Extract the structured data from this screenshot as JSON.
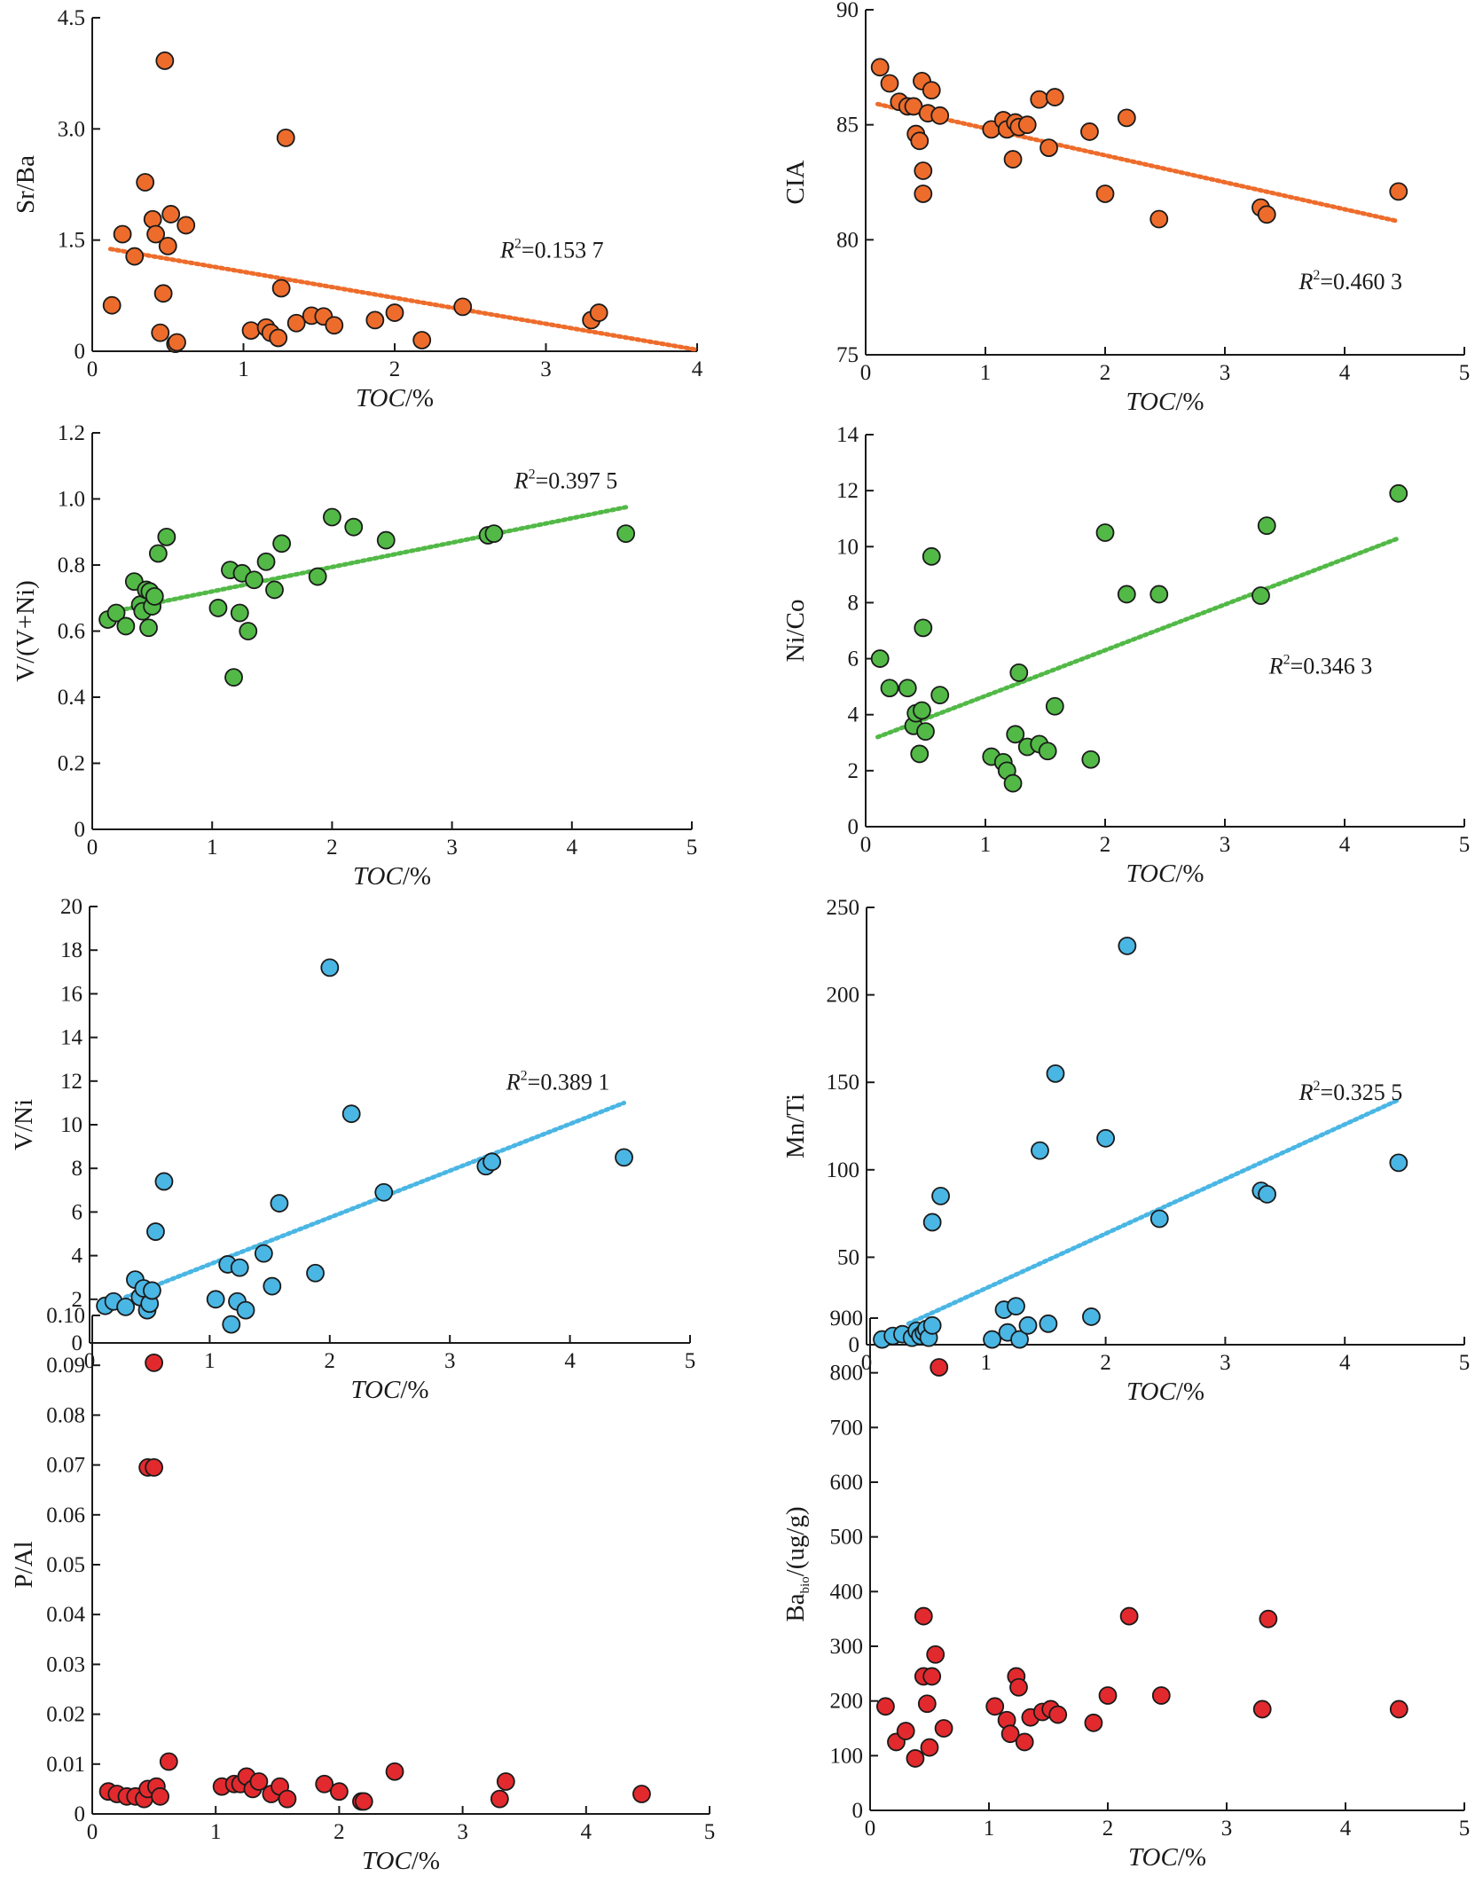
{
  "chart_data": [
    {
      "type": "scatter",
      "color": "#ee6c2b",
      "xlabel": "TOC/%",
      "ylabel": "Sr/Ba",
      "xlim": [
        0,
        4
      ],
      "ylim": [
        0,
        4.5
      ],
      "xticks": [
        "0",
        "1",
        "2",
        "3",
        "4"
      ],
      "yticks": [
        "0",
        "1.5",
        "3.0",
        "4.5"
      ],
      "r2_label": "R²=0.153 7",
      "trendline": {
        "x0": 0.12,
        "y0": 1.38,
        "x1": 4.0,
        "y1": 0.02
      },
      "points": [
        [
          0.13,
          0.62
        ],
        [
          0.2,
          1.58
        ],
        [
          0.28,
          1.28
        ],
        [
          0.35,
          2.28
        ],
        [
          0.4,
          1.78
        ],
        [
          0.42,
          1.58
        ],
        [
          0.45,
          0.25
        ],
        [
          0.47,
          0.78
        ],
        [
          0.48,
          3.92
        ],
        [
          0.5,
          1.42
        ],
        [
          0.52,
          1.85
        ],
        [
          0.55,
          0.1
        ],
        [
          0.56,
          0.12
        ],
        [
          0.62,
          1.7
        ],
        [
          1.05,
          0.28
        ],
        [
          1.15,
          0.32
        ],
        [
          1.18,
          0.25
        ],
        [
          1.23,
          0.18
        ],
        [
          1.25,
          0.85
        ],
        [
          1.28,
          2.88
        ],
        [
          1.35,
          0.38
        ],
        [
          1.45,
          0.48
        ],
        [
          1.53,
          0.47
        ],
        [
          1.6,
          0.35
        ],
        [
          1.87,
          0.42
        ],
        [
          2.0,
          0.52
        ],
        [
          2.18,
          0.15
        ],
        [
          2.45,
          0.6
        ],
        [
          3.3,
          0.42
        ],
        [
          3.35,
          0.52
        ]
      ]
    },
    {
      "type": "scatter",
      "color": "#ee6c2b",
      "xlabel": "TOC/%",
      "ylabel": "CIA",
      "xlim": [
        0,
        5
      ],
      "ylim": [
        75,
        90
      ],
      "xticks": [
        "0",
        "1",
        "2",
        "3",
        "4",
        "5"
      ],
      "yticks": [
        "75",
        "80",
        "85",
        "90"
      ],
      "r2_label": "R²=0.460 3",
      "trendline": {
        "x0": 0.1,
        "y0": 85.9,
        "x1": 4.45,
        "y1": 80.8
      },
      "points": [
        [
          0.12,
          87.5
        ],
        [
          0.2,
          86.8
        ],
        [
          0.28,
          86.0
        ],
        [
          0.35,
          85.8
        ],
        [
          0.4,
          85.8
        ],
        [
          0.42,
          84.6
        ],
        [
          0.45,
          84.3
        ],
        [
          0.47,
          86.9
        ],
        [
          0.48,
          83.0
        ],
        [
          0.48,
          82.0
        ],
        [
          0.52,
          85.5
        ],
        [
          0.55,
          86.5
        ],
        [
          0.62,
          85.4
        ],
        [
          1.05,
          84.8
        ],
        [
          1.15,
          85.2
        ],
        [
          1.18,
          84.8
        ],
        [
          1.23,
          83.5
        ],
        [
          1.25,
          85.1
        ],
        [
          1.28,
          84.9
        ],
        [
          1.35,
          85.0
        ],
        [
          1.45,
          86.1
        ],
        [
          1.53,
          84.0
        ],
        [
          1.58,
          86.2
        ],
        [
          1.87,
          84.7
        ],
        [
          2.0,
          82.0
        ],
        [
          2.18,
          85.3
        ],
        [
          2.45,
          80.9
        ],
        [
          3.3,
          81.4
        ],
        [
          3.35,
          81.1
        ],
        [
          4.45,
          82.1
        ]
      ]
    },
    {
      "type": "scatter",
      "color": "#52b947",
      "xlabel": "TOC/%",
      "ylabel": "V/(V+Ni)",
      "xlim": [
        0,
        5
      ],
      "ylim": [
        0,
        1.2
      ],
      "xticks": [
        "0",
        "1",
        "2",
        "3",
        "4",
        "5"
      ],
      "yticks": [
        "0",
        "0.2",
        "0.4",
        "0.6",
        "0.8",
        "1.0",
        "1.2"
      ],
      "r2_label": "R²=0.397 5",
      "trendline": {
        "x0": 0.12,
        "y0": 0.655,
        "x1": 4.45,
        "y1": 0.975
      },
      "points": [
        [
          0.13,
          0.635
        ],
        [
          0.2,
          0.655
        ],
        [
          0.28,
          0.615
        ],
        [
          0.35,
          0.75
        ],
        [
          0.4,
          0.68
        ],
        [
          0.42,
          0.66
        ],
        [
          0.45,
          0.725
        ],
        [
          0.47,
          0.61
        ],
        [
          0.48,
          0.72
        ],
        [
          0.5,
          0.675
        ],
        [
          0.52,
          0.705
        ],
        [
          0.55,
          0.835
        ],
        [
          0.62,
          0.885
        ],
        [
          1.05,
          0.67
        ],
        [
          1.15,
          0.785
        ],
        [
          1.18,
          0.46
        ],
        [
          1.23,
          0.655
        ],
        [
          1.25,
          0.775
        ],
        [
          1.3,
          0.6
        ],
        [
          1.35,
          0.755
        ],
        [
          1.45,
          0.81
        ],
        [
          1.52,
          0.725
        ],
        [
          1.58,
          0.865
        ],
        [
          1.88,
          0.765
        ],
        [
          2.0,
          0.945
        ],
        [
          2.18,
          0.915
        ],
        [
          2.45,
          0.875
        ],
        [
          3.3,
          0.89
        ],
        [
          3.35,
          0.895
        ],
        [
          4.45,
          0.895
        ]
      ]
    },
    {
      "type": "scatter",
      "color": "#52b947",
      "xlabel": "TOC/%",
      "ylabel": "Ni/Co",
      "xlim": [
        0,
        5
      ],
      "ylim": [
        0,
        14
      ],
      "xticks": [
        "0",
        "1",
        "2",
        "3",
        "4",
        "5"
      ],
      "yticks": [
        "0",
        "2",
        "4",
        "6",
        "8",
        "10",
        "12",
        "14"
      ],
      "r2_label": "R²=0.346 3",
      "trendline": {
        "x0": 0.1,
        "y0": 3.2,
        "x1": 4.45,
        "y1": 10.3
      },
      "points": [
        [
          0.12,
          6.0
        ],
        [
          0.2,
          4.95
        ],
        [
          0.35,
          4.95
        ],
        [
          0.4,
          3.6
        ],
        [
          0.42,
          4.05
        ],
        [
          0.45,
          2.6
        ],
        [
          0.47,
          4.15
        ],
        [
          0.48,
          7.1
        ],
        [
          0.5,
          3.4
        ],
        [
          0.55,
          9.65
        ],
        [
          0.62,
          4.7
        ],
        [
          1.05,
          2.5
        ],
        [
          1.15,
          2.3
        ],
        [
          1.18,
          2.0
        ],
        [
          1.23,
          1.55
        ],
        [
          1.25,
          3.3
        ],
        [
          1.28,
          5.5
        ],
        [
          1.35,
          2.85
        ],
        [
          1.45,
          2.95
        ],
        [
          1.52,
          2.7
        ],
        [
          1.58,
          4.3
        ],
        [
          1.88,
          2.4
        ],
        [
          2.0,
          10.5
        ],
        [
          2.18,
          8.3
        ],
        [
          2.45,
          8.3
        ],
        [
          3.3,
          8.25
        ],
        [
          3.35,
          10.75
        ],
        [
          4.45,
          11.9
        ]
      ]
    },
    {
      "type": "scatter",
      "color": "#4ab6e4",
      "xlabel": "TOC/%",
      "ylabel": "V/Ni",
      "xlim": [
        0,
        5
      ],
      "ylim": [
        0,
        20
      ],
      "xticks": [
        "0",
        "1",
        "2",
        "3",
        "4",
        "5"
      ],
      "yticks": [
        "0",
        "2",
        "4",
        "6",
        "8",
        "10",
        "12",
        "14",
        "16",
        "18",
        "20"
      ],
      "r2_label": "R²=0.389 1",
      "trendline": {
        "x0": 0.3,
        "y0": 2.1,
        "x1": 4.45,
        "y1": 11.0
      },
      "points": [
        [
          0.13,
          1.7
        ],
        [
          0.2,
          1.9
        ],
        [
          0.3,
          1.65
        ],
        [
          0.38,
          2.9
        ],
        [
          0.42,
          2.1
        ],
        [
          0.45,
          2.5
        ],
        [
          0.48,
          1.5
        ],
        [
          0.5,
          1.8
        ],
        [
          0.52,
          2.4
        ],
        [
          0.55,
          5.1
        ],
        [
          0.62,
          7.4
        ],
        [
          1.05,
          2.0
        ],
        [
          1.15,
          3.6
        ],
        [
          1.18,
          0.85
        ],
        [
          1.23,
          1.9
        ],
        [
          1.25,
          3.45
        ],
        [
          1.3,
          1.5
        ],
        [
          1.45,
          4.1
        ],
        [
          1.52,
          2.6
        ],
        [
          1.58,
          6.4
        ],
        [
          1.88,
          3.2
        ],
        [
          2.0,
          17.2
        ],
        [
          2.18,
          10.5
        ],
        [
          2.45,
          6.9
        ],
        [
          3.3,
          8.1
        ],
        [
          3.35,
          8.3
        ],
        [
          4.45,
          8.5
        ]
      ]
    },
    {
      "type": "scatter",
      "color": "#4ab6e4",
      "xlabel": "TOC/%",
      "ylabel": "Mn/Ti",
      "xlim": [
        0,
        5
      ],
      "ylim": [
        0,
        250
      ],
      "xticks": [
        "0",
        "1",
        "2",
        "3",
        "4",
        "5"
      ],
      "yticks": [
        "0",
        "50",
        "100",
        "150",
        "200",
        "250"
      ],
      "r2_label": "R²=0.325 5",
      "trendline": {
        "x0": 0.35,
        "y0": 12.0,
        "x1": 4.45,
        "y1": 140.0
      },
      "points": [
        [
          0.13,
          3
        ],
        [
          0.22,
          5
        ],
        [
          0.3,
          6
        ],
        [
          0.38,
          4
        ],
        [
          0.42,
          8
        ],
        [
          0.45,
          5
        ],
        [
          0.48,
          7
        ],
        [
          0.5,
          9
        ],
        [
          0.52,
          4
        ],
        [
          0.55,
          11
        ],
        [
          0.55,
          70
        ],
        [
          0.62,
          85
        ],
        [
          1.05,
          3
        ],
        [
          1.15,
          20
        ],
        [
          1.18,
          7
        ],
        [
          1.25,
          22
        ],
        [
          1.28,
          3
        ],
        [
          1.35,
          11
        ],
        [
          1.45,
          111
        ],
        [
          1.52,
          12
        ],
        [
          1.58,
          155
        ],
        [
          1.88,
          16
        ],
        [
          2.0,
          118
        ],
        [
          2.18,
          228
        ],
        [
          2.45,
          72
        ],
        [
          3.3,
          88
        ],
        [
          3.35,
          86
        ],
        [
          4.45,
          104
        ]
      ]
    },
    {
      "type": "scatter",
      "color": "#e22a2e",
      "xlabel": "TOC/%",
      "ylabel": "P/Al",
      "xlim": [
        0,
        5
      ],
      "ylim": [
        0,
        0.1
      ],
      "xticks": [
        "0",
        "1",
        "2",
        "3",
        "4",
        "5"
      ],
      "yticks": [
        "0",
        "0.01",
        "0.02",
        "0.03",
        "0.04",
        "0.05",
        "0.06",
        "0.07",
        "0.08",
        "0.09",
        "0.10"
      ],
      "r2_label": "",
      "trendline": null,
      "points": [
        [
          0.13,
          0.0045
        ],
        [
          0.2,
          0.004
        ],
        [
          0.28,
          0.0035
        ],
        [
          0.35,
          0.0035
        ],
        [
          0.42,
          0.003
        ],
        [
          0.45,
          0.005
        ],
        [
          0.45,
          0.0695
        ],
        [
          0.5,
          0.0695
        ],
        [
          0.5,
          0.0905
        ],
        [
          0.52,
          0.0055
        ],
        [
          0.55,
          0.0035
        ],
        [
          0.62,
          0.0105
        ],
        [
          1.05,
          0.0055
        ],
        [
          1.15,
          0.006
        ],
        [
          1.2,
          0.006
        ],
        [
          1.25,
          0.0075
        ],
        [
          1.3,
          0.005
        ],
        [
          1.35,
          0.0065
        ],
        [
          1.45,
          0.004
        ],
        [
          1.52,
          0.0055
        ],
        [
          1.58,
          0.003
        ],
        [
          1.88,
          0.006
        ],
        [
          2.0,
          0.0045
        ],
        [
          2.18,
          0.0025
        ],
        [
          2.2,
          0.0025
        ],
        [
          2.45,
          0.0085
        ],
        [
          3.3,
          0.003
        ],
        [
          3.35,
          0.0065
        ],
        [
          4.45,
          0.004
        ]
      ]
    },
    {
      "type": "scatter",
      "color": "#e22a2e",
      "xlabel": "TOC/%",
      "ylabel_main": "Ba",
      "ylabel_sub": "bio",
      "ylabel_unit": "/(ug/g)",
      "xlim": [
        0,
        5
      ],
      "ylim": [
        0,
        900
      ],
      "xticks": [
        "0",
        "1",
        "2",
        "3",
        "4",
        "5"
      ],
      "yticks": [
        "0",
        "100",
        "200",
        "300",
        "400",
        "500",
        "600",
        "700",
        "800",
        "900"
      ],
      "r2_label": "",
      "trendline": null,
      "points": [
        [
          0.13,
          190
        ],
        [
          0.22,
          125
        ],
        [
          0.3,
          145
        ],
        [
          0.38,
          95
        ],
        [
          0.45,
          355
        ],
        [
          0.45,
          245
        ],
        [
          0.48,
          195
        ],
        [
          0.5,
          115
        ],
        [
          0.52,
          245
        ],
        [
          0.55,
          285
        ],
        [
          0.58,
          810
        ],
        [
          0.62,
          150
        ],
        [
          1.05,
          190
        ],
        [
          1.15,
          165
        ],
        [
          1.18,
          140
        ],
        [
          1.23,
          245
        ],
        [
          1.25,
          225
        ],
        [
          1.3,
          125
        ],
        [
          1.35,
          170
        ],
        [
          1.45,
          180
        ],
        [
          1.52,
          185
        ],
        [
          1.58,
          175
        ],
        [
          1.88,
          160
        ],
        [
          2.0,
          210
        ],
        [
          2.18,
          355
        ],
        [
          2.45,
          210
        ],
        [
          3.3,
          185
        ],
        [
          3.35,
          350
        ],
        [
          4.45,
          185
        ]
      ]
    }
  ]
}
